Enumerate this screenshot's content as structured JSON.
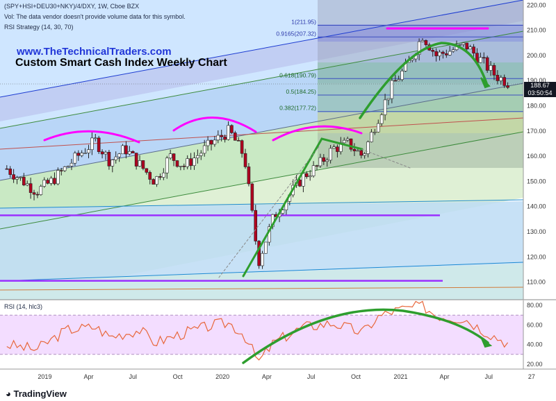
{
  "header": {
    "symbol_line": "(SPY+HSI+DEU30+NKY)/4/DXY, 1W, Cboe BZX",
    "vol_line": "Vol: The data vendor doesn't provide volume data for this symbol.",
    "strategy_line": "RSI Strategy (14, 30, 70)"
  },
  "brand": "www.TheTechnicalTraders.com",
  "title": "Custom Smart Cash Index Weekly Chart",
  "price_tag": "188.67",
  "time_tag": "03:50:54",
  "rsi_label": "RSI (14, hlc3)",
  "footer": {
    "logo_text": "TradingView"
  },
  "colors": {
    "candle_up": "#ffffff",
    "candle_down": "#b0001f",
    "rsi_line": "#e8673b",
    "rsi_band": "#f3ddff",
    "annotation_magenta": "#ff00ff",
    "annotation_green": "#2e9e2e",
    "annotation_purple": "#9b30ff"
  },
  "chart_data": [
    {
      "type": "candlestick",
      "title": "",
      "x_ticks": [
        "2019",
        "Apr",
        "Jul",
        "Oct",
        "2020",
        "Apr",
        "Jul",
        "Oct",
        "2021",
        "Apr",
        "Jul",
        "27"
      ],
      "y_ticks": [
        110,
        120,
        130,
        140,
        150,
        160,
        170,
        180,
        190,
        200,
        210,
        220
      ],
      "ylim": [
        103,
        222
      ],
      "anchors": [
        {
          "x": "2018-10",
          "y": 155
        },
        {
          "x": "2018-12",
          "y": 146
        },
        {
          "x": "2019-01",
          "y": 150
        },
        {
          "x": "2019-03",
          "y": 161
        },
        {
          "x": "2019-04",
          "y": 166
        },
        {
          "x": "2019-05",
          "y": 158
        },
        {
          "x": "2019-06",
          "y": 163
        },
        {
          "x": "2019-08",
          "y": 150
        },
        {
          "x": "2019-09",
          "y": 160
        },
        {
          "x": "2019-10",
          "y": 156
        },
        {
          "x": "2019-12",
          "y": 166
        },
        {
          "x": "2020-01",
          "y": 170
        },
        {
          "x": "2020-02",
          "y": 160
        },
        {
          "x": "2020-03",
          "y": 118
        },
        {
          "x": "2020-04",
          "y": 136
        },
        {
          "x": "2020-06",
          "y": 152
        },
        {
          "x": "2020-07",
          "y": 156
        },
        {
          "x": "2020-08",
          "y": 163
        },
        {
          "x": "2020-09",
          "y": 165
        },
        {
          "x": "2020-10",
          "y": 160
        },
        {
          "x": "2020-11",
          "y": 175
        },
        {
          "x": "2020-12",
          "y": 188
        },
        {
          "x": "2021-01",
          "y": 196
        },
        {
          "x": "2021-02",
          "y": 208
        },
        {
          "x": "2021-03",
          "y": 200
        },
        {
          "x": "2021-04",
          "y": 202
        },
        {
          "x": "2021-05",
          "y": 204
        },
        {
          "x": "2021-06",
          "y": 198
        },
        {
          "x": "2021-07",
          "y": 192
        },
        {
          "x": "2021-08",
          "y": 188.67
        }
      ],
      "fib_levels": [
        {
          "label": "1(211.95)",
          "value": 211.95
        },
        {
          "label": "0.9165(207.32)",
          "value": 207.32
        },
        {
          "label": "0.618(190.79)",
          "value": 190.79
        },
        {
          "label": "0.5(184.25)",
          "value": 184.25
        },
        {
          "label": "0.382(177.72)",
          "value": 177.72
        }
      ],
      "horizontal_lines": [
        136.5,
        110.5
      ],
      "last_price": 188.67
    },
    {
      "type": "line",
      "title": "",
      "name": "RSI (14, hlc3)",
      "y_ticks": [
        20,
        40,
        60,
        80
      ],
      "band": [
        30,
        70
      ],
      "ylim": [
        15,
        85
      ],
      "anchors": [
        {
          "x": "2018-10",
          "y": 40
        },
        {
          "x": "2018-12",
          "y": 35
        },
        {
          "x": "2019-02",
          "y": 55
        },
        {
          "x": "2019-04",
          "y": 58
        },
        {
          "x": "2019-05",
          "y": 48
        },
        {
          "x": "2019-07",
          "y": 55
        },
        {
          "x": "2019-08",
          "y": 42
        },
        {
          "x": "2019-10",
          "y": 52
        },
        {
          "x": "2019-12",
          "y": 60
        },
        {
          "x": "2020-01",
          "y": 62
        },
        {
          "x": "2020-02",
          "y": 50
        },
        {
          "x": "2020-03",
          "y": 22
        },
        {
          "x": "2020-04",
          "y": 42
        },
        {
          "x": "2020-06",
          "y": 58
        },
        {
          "x": "2020-08",
          "y": 62
        },
        {
          "x": "2020-10",
          "y": 52
        },
        {
          "x": "2020-11",
          "y": 68
        },
        {
          "x": "2020-12",
          "y": 74
        },
        {
          "x": "2021-02",
          "y": 80
        },
        {
          "x": "2021-03",
          "y": 70
        },
        {
          "x": "2021-05",
          "y": 66
        },
        {
          "x": "2021-06",
          "y": 56
        },
        {
          "x": "2021-07",
          "y": 48
        },
        {
          "x": "2021-08",
          "y": 40
        }
      ]
    }
  ]
}
